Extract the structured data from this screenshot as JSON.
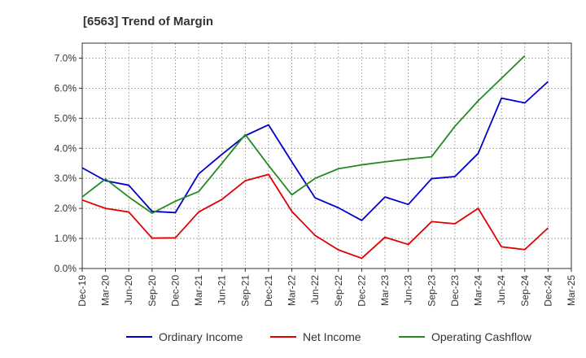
{
  "chart_data": {
    "type": "line",
    "title": "[6563]  Trend of Margin",
    "xlabel": "",
    "ylabel": "",
    "x": [
      "Dec-19",
      "Mar-20",
      "Jun-20",
      "Sep-20",
      "Dec-20",
      "Mar-21",
      "Jun-21",
      "Sep-21",
      "Dec-21",
      "Mar-22",
      "Jun-22",
      "Sep-22",
      "Dec-22",
      "Mar-23",
      "Jun-23",
      "Sep-23",
      "Dec-23",
      "Mar-24",
      "Jun-24",
      "Sep-24",
      "Dec-24",
      "Mar-25"
    ],
    "ylim": [
      0,
      7.5
    ],
    "yticks": [
      0,
      1,
      2,
      3,
      4,
      5,
      6,
      7
    ],
    "ytick_labels": [
      "0.0%",
      "1.0%",
      "2.0%",
      "3.0%",
      "4.0%",
      "5.0%",
      "6.0%",
      "7.0%"
    ],
    "grid": true,
    "legend_position": "bottom",
    "series": [
      {
        "name": "Ordinary Income",
        "color": "#0000cc",
        "values": [
          3.35,
          2.92,
          2.77,
          1.9,
          1.86,
          3.15,
          3.8,
          4.42,
          4.78,
          3.55,
          2.35,
          2.02,
          1.6,
          2.38,
          2.13,
          2.99,
          3.06,
          3.83,
          5.67,
          5.51,
          6.22,
          null
        ]
      },
      {
        "name": "Net Income",
        "color": "#e00000",
        "values": [
          2.28,
          2.0,
          1.88,
          1.01,
          1.02,
          1.88,
          2.3,
          2.92,
          3.13,
          1.9,
          1.1,
          0.62,
          0.34,
          1.04,
          0.8,
          1.56,
          1.49,
          2.0,
          0.72,
          0.63,
          1.35,
          null
        ]
      },
      {
        "name": "Operating Cashflow",
        "color": "#228b22",
        "values": [
          2.38,
          2.98,
          2.38,
          1.84,
          2.24,
          2.56,
          3.5,
          4.46,
          3.43,
          2.45,
          3.0,
          3.32,
          3.45,
          3.55,
          3.64,
          3.72,
          4.73,
          5.58,
          6.33,
          7.08,
          null,
          null
        ]
      }
    ]
  }
}
